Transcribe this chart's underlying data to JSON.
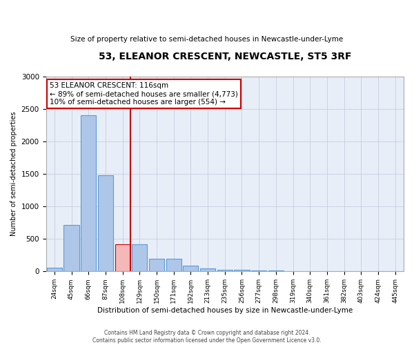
{
  "title": "53, ELEANOR CRESCENT, NEWCASTLE, ST5 3RF",
  "subtitle": "Size of property relative to semi-detached houses in Newcastle-under-Lyme",
  "xlabel": "Distribution of semi-detached houses by size in Newcastle-under-Lyme",
  "ylabel": "Number of semi-detached properties",
  "footer_line1": "Contains HM Land Registry data © Crown copyright and database right 2024.",
  "footer_line2": "Contains public sector information licensed under the Open Government Licence v3.0.",
  "categories": [
    "24sqm",
    "45sqm",
    "66sqm",
    "87sqm",
    "108sqm",
    "129sqm",
    "150sqm",
    "171sqm",
    "192sqm",
    "213sqm",
    "235sqm",
    "256sqm",
    "277sqm",
    "298sqm",
    "319sqm",
    "340sqm",
    "361sqm",
    "382sqm",
    "403sqm",
    "424sqm",
    "445sqm"
  ],
  "values": [
    60,
    720,
    2400,
    1480,
    420,
    420,
    190,
    190,
    85,
    50,
    30,
    20,
    15,
    10,
    5,
    4,
    3,
    2,
    1,
    1,
    0
  ],
  "highlight_index": 4,
  "highlight_color": "#cc0000",
  "bar_color": "#aec6e8",
  "bar_edge_color": "#5b9bd5",
  "highlight_bar_color": "#f4b8b8",
  "highlight_bar_edge_color": "#cc0000",
  "property_label": "53 ELEANOR CRESCENT: 116sqm",
  "pct_smaller": 89,
  "count_smaller": 4773,
  "pct_larger": 10,
  "count_larger": 554,
  "annotation_box_color": "#ffffff",
  "annotation_box_edge": "#cc0000",
  "ylim": [
    0,
    3000
  ],
  "background_color": "#ffffff",
  "plot_bg_color": "#e8eef8",
  "grid_color": "#c0c8d8"
}
